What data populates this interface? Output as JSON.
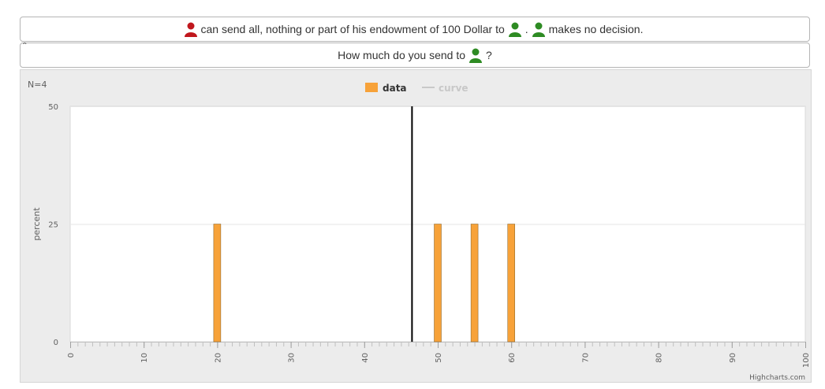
{
  "info_line": {
    "text_1": "can send all, nothing or part of his endowment of 100 Dollar to",
    "text_2": ".",
    "text_3": "makes no decision."
  },
  "question_line": {
    "text_1": "How much do you send to",
    "text_2": "?",
    "collapse_glyph": "ˆ"
  },
  "icons": {
    "sender": "red-person-icon",
    "receiver": "green-person-icon"
  },
  "colors": {
    "sender": "#c0171d",
    "receiver": "#2e8b23",
    "bar": "#f7a239",
    "bar_border": "#7f5b22",
    "marker_line": "#000000",
    "curve_legend": "#c8c8c8"
  },
  "chart_data": {
    "type": "bar",
    "n_label": "N=4",
    "ylabel": "percent",
    "xlim": [
      0,
      100
    ],
    "ylim": [
      0,
      50
    ],
    "yticks": [
      0,
      25,
      50
    ],
    "xticks": [
      0,
      10,
      20,
      30,
      40,
      50,
      60,
      70,
      80,
      90,
      100
    ],
    "minor_tick_interval": 1,
    "grid": "horizontal",
    "legend_position": "top-center",
    "legend": [
      {
        "name": "data",
        "symbol": "square",
        "active": true
      },
      {
        "name": "curve",
        "symbol": "line",
        "active": false
      }
    ],
    "series": [
      {
        "name": "data",
        "points": [
          {
            "x": 20,
            "y": 25
          },
          {
            "x": 50,
            "y": 25
          },
          {
            "x": 55,
            "y": 25
          },
          {
            "x": 60,
            "y": 25
          }
        ]
      }
    ],
    "marker_line_x": 46.5,
    "credits": "Highcharts.com"
  }
}
